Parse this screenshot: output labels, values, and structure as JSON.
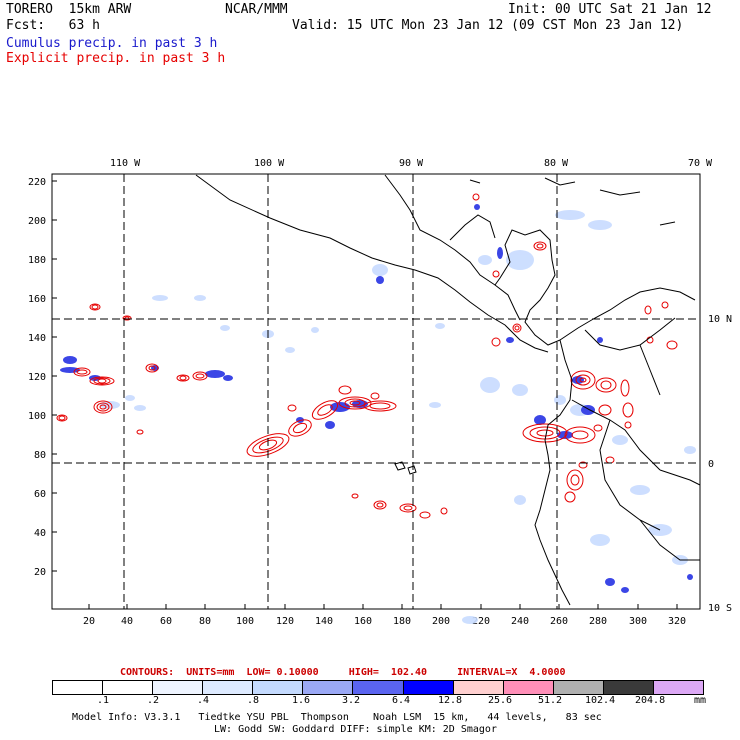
{
  "header": {
    "model": "TORERO  15km ARW",
    "org": "NCAR/MMM",
    "init": "Init: 00 UTC Sat 21 Jan 12",
    "fcst": "Fcst:   63 h",
    "valid": "Valid: 15 UTC Mon 23 Jan 12 (09 CST Mon 23 Jan 12)",
    "cumulus_label": "Cumulus precip. in past 3 h",
    "explicit_label": "Explicit precip. in past 3 h"
  },
  "colors": {
    "cumulus": "#1a1acc",
    "explicit": "#e60000",
    "coast": "#000000"
  },
  "map": {
    "top_lon_labels": [
      "110 W",
      "100 W",
      "90 W",
      "80 W",
      "70 W"
    ],
    "right_lat_labels": [
      "10 N",
      "0",
      "10 S"
    ],
    "x_ticks": [
      "20",
      "40",
      "60",
      "80",
      "100",
      "120",
      "140",
      "160",
      "180",
      "200",
      "220",
      "240",
      "260",
      "280",
      "300",
      "320"
    ],
    "y_ticks": [
      "220",
      "200",
      "180",
      "160",
      "140",
      "120",
      "100",
      "80",
      "60",
      "40",
      "20"
    ]
  },
  "legend": {
    "title": "CONTOURS:  UNITS=mm  LOW= 0.10000     HIGH=  102.40     INTERVAL=X  4.0000",
    "labels": [
      ".1",
      ".2",
      ".4",
      ".8",
      "1.6",
      "3.2",
      "6.4",
      "12.8",
      "25.6",
      "51.2",
      "102.4",
      "204.8"
    ],
    "unit": "mm",
    "colors": [
      "#ffffff",
      "#ffffff",
      "#eef4ff",
      "#ddeaff",
      "#c4dafe",
      "#9aa8f5",
      "#5a64f0",
      "#0000ff",
      "#ffd0d0",
      "#ff8fb8",
      "#b0b0b0",
      "#3a3a3a",
      "#dca8f5"
    ]
  },
  "footer": {
    "line1": "Model Info: V3.3.1   Tiedtke YSU PBL  Thompson    Noah LSM  15 km,   44 levels,   83 sec",
    "line2": "LW: Godd SW: Goddard DIFF: simple KM: 2D Smagor"
  }
}
